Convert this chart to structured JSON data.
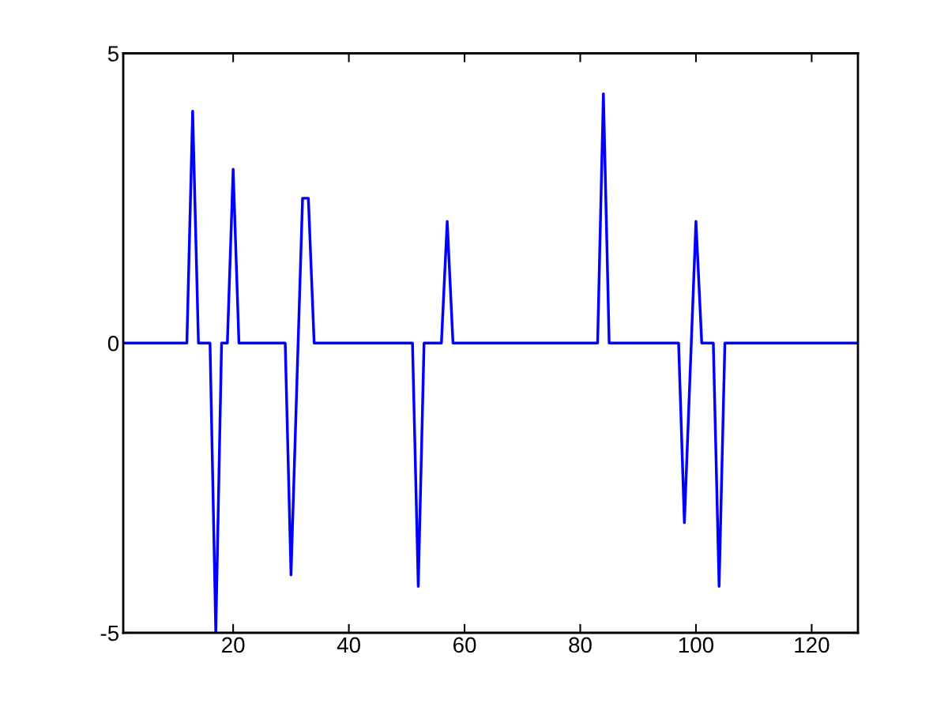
{
  "chart_data": {
    "type": "line",
    "x": [
      1,
      12,
      13,
      14,
      16,
      17,
      18,
      19,
      20,
      21,
      29,
      30,
      32,
      33,
      34,
      51,
      52,
      53,
      56,
      57,
      58,
      83,
      84,
      85,
      97,
      98,
      100,
      101,
      103,
      104,
      105,
      128
    ],
    "series": [
      {
        "color": "#0000ff",
        "values": [
          0,
          0,
          4.0,
          0,
          0,
          -5,
          0,
          0,
          3.0,
          0,
          0,
          -4.0,
          2.5,
          2.5,
          0,
          0,
          -4.2,
          0,
          0,
          2.1,
          0,
          0,
          4.3,
          0,
          0,
          -3.1,
          2.1,
          0,
          0,
          -4.2,
          0,
          0
        ]
      }
    ],
    "xlim": [
      1,
      128
    ],
    "xticks": [
      20,
      40,
      60,
      80,
      100,
      120
    ],
    "ylim": [
      -5,
      5
    ],
    "yticks": [
      -5,
      0,
      5
    ],
    "grid": false,
    "legend": false,
    "marker": "none",
    "line_style": "solid"
  }
}
